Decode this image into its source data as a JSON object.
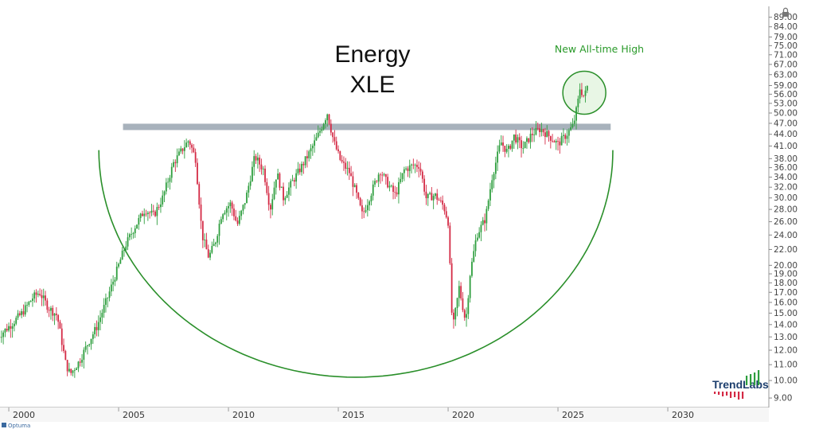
{
  "chart_data": {
    "type": "candlestick",
    "title": "Energy",
    "subtitle": "XLE",
    "annotation": "New All-time High",
    "brand": "TrendLabs",
    "footer": "Optuma",
    "yscale": "log",
    "ylim": [
      8.5,
      95
    ],
    "xlim": [
      1999.6,
      2034.6
    ],
    "ytick_labels": [
      "89.00",
      "84.00",
      "79.00",
      "75.00",
      "71.00",
      "67.00",
      "63.00",
      "59.00",
      "56.00",
      "53.00",
      "50.00",
      "47.00",
      "44.00",
      "41.00",
      "38.00",
      "36.00",
      "34.00",
      "32.00",
      "30.00",
      "28.00",
      "26.00",
      "24.00",
      "22.00",
      "20.00",
      "19.00",
      "18.00",
      "17.00",
      "16.00",
      "15.00",
      "14.00",
      "13.00",
      "12.00",
      "11.00",
      "10.00",
      "9.00"
    ],
    "xtick_labels": [
      "2000",
      "2005",
      "2010",
      "2015",
      "2020",
      "2025",
      "2030"
    ],
    "resistance_level": 46.0,
    "resistance_range": [
      2005.2,
      2027.4
    ],
    "cup": {
      "x_start": 2004.1,
      "x_end": 2027.5,
      "top_value": 40.0,
      "bottom_value": 10.2
    },
    "colors": {
      "up": "#2e9e3e",
      "down": "#d42a45",
      "cup": "#2a8f2a",
      "resistance": "#a8b2bc",
      "highlight_fill": "#d6efd0"
    },
    "price_anchors": [
      [
        1999.5,
        13.0
      ],
      [
        2000.1,
        14.0
      ],
      [
        2000.6,
        15.0
      ],
      [
        2001.1,
        16.5
      ],
      [
        2001.4,
        17.0
      ],
      [
        2001.8,
        15.5
      ],
      [
        2002.2,
        14.8
      ],
      [
        2002.6,
        11.0
      ],
      [
        2002.8,
        10.4
      ],
      [
        2003.2,
        11.2
      ],
      [
        2003.6,
        12.5
      ],
      [
        2004.0,
        13.8
      ],
      [
        2004.5,
        16.5
      ],
      [
        2005.0,
        20.0
      ],
      [
        2005.3,
        22.5
      ],
      [
        2005.7,
        25.0
      ],
      [
        2006.2,
        28.0
      ],
      [
        2006.6,
        27.0
      ],
      [
        2007.0,
        30.0
      ],
      [
        2007.5,
        37.0
      ],
      [
        2008.0,
        41.0
      ],
      [
        2008.2,
        42.5
      ],
      [
        2008.5,
        38.0
      ],
      [
        2008.8,
        24.0
      ],
      [
        2009.1,
        21.0
      ],
      [
        2009.4,
        23.0
      ],
      [
        2009.7,
        27.5
      ],
      [
        2010.1,
        29.0
      ],
      [
        2010.4,
        25.5
      ],
      [
        2010.8,
        30.0
      ],
      [
        2011.2,
        38.5
      ],
      [
        2011.6,
        35.5
      ],
      [
        2011.9,
        28.0
      ],
      [
        2012.2,
        35.0
      ],
      [
        2012.5,
        30.0
      ],
      [
        2012.9,
        33.0
      ],
      [
        2013.3,
        36.0
      ],
      [
        2013.7,
        39.5
      ],
      [
        2014.1,
        44.0
      ],
      [
        2014.5,
        50.0
      ],
      [
        2014.8,
        42.0
      ],
      [
        2015.1,
        37.5
      ],
      [
        2015.5,
        35.0
      ],
      [
        2015.8,
        31.0
      ],
      [
        2016.1,
        27.0
      ],
      [
        2016.5,
        31.0
      ],
      [
        2016.9,
        35.5
      ],
      [
        2017.2,
        33.0
      ],
      [
        2017.6,
        30.5
      ],
      [
        2018.0,
        35.5
      ],
      [
        2018.4,
        36.5
      ],
      [
        2018.7,
        36.5
      ],
      [
        2019.0,
        30.0
      ],
      [
        2019.4,
        30.5
      ],
      [
        2019.8,
        28.5
      ],
      [
        2020.0,
        26.0
      ],
      [
        2020.2,
        13.5
      ],
      [
        2020.5,
        17.5
      ],
      [
        2020.8,
        14.2
      ],
      [
        2021.0,
        19.0
      ],
      [
        2021.3,
        24.0
      ],
      [
        2021.7,
        26.5
      ],
      [
        2022.0,
        34.0
      ],
      [
        2022.4,
        42.0
      ],
      [
        2022.7,
        39.5
      ],
      [
        2023.0,
        43.5
      ],
      [
        2023.4,
        40.5
      ],
      [
        2023.8,
        44.0
      ],
      [
        2024.2,
        45.5
      ],
      [
        2024.6,
        43.5
      ],
      [
        2025.0,
        41.5
      ],
      [
        2025.4,
        44.0
      ],
      [
        2025.7,
        46.5
      ],
      [
        2025.9,
        53.0
      ],
      [
        2026.0,
        58.0
      ],
      [
        2026.2,
        55.0
      ],
      [
        2026.4,
        60.5
      ]
    ]
  }
}
